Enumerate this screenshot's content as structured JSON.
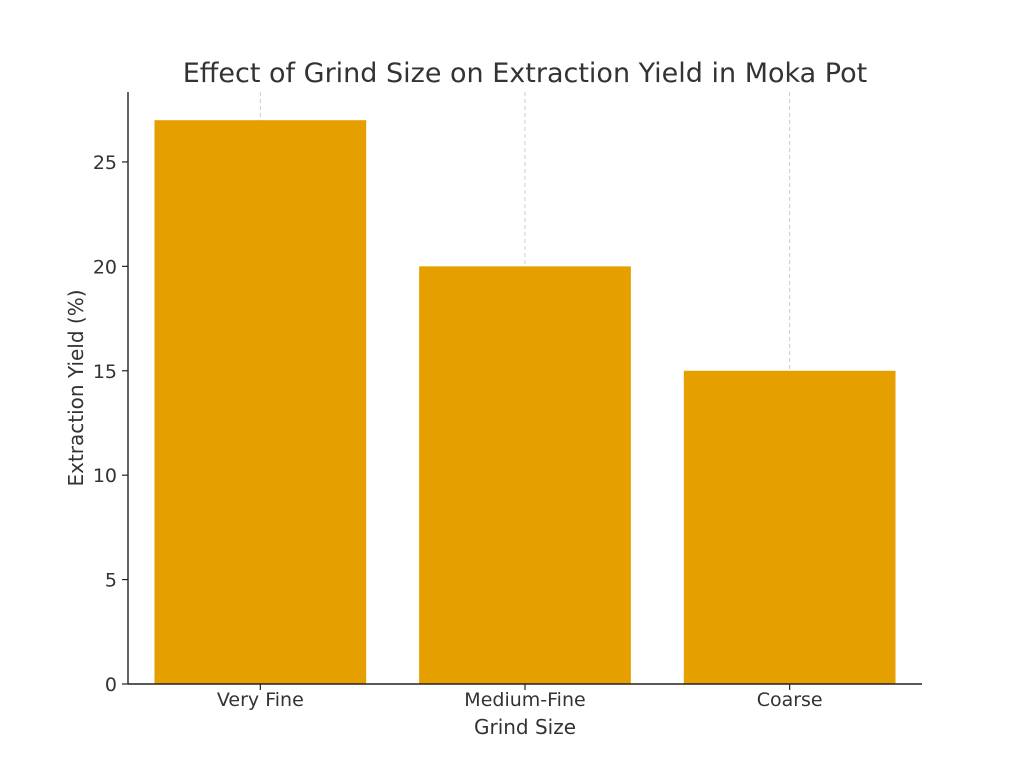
{
  "chart_data": {
    "type": "bar",
    "title": "Effect of Grind Size on Extraction Yield in Moka Pot",
    "xlabel": "Grind Size",
    "ylabel": "Extraction Yield (%)",
    "categories": [
      "Very Fine",
      "Medium-Fine",
      "Coarse"
    ],
    "values": [
      27,
      20,
      15
    ],
    "ylim": [
      0,
      28.35
    ],
    "yticks": [
      0,
      5,
      10,
      15,
      20,
      25
    ],
    "grid": "x-dashed",
    "bar_color": "#E5A000"
  }
}
